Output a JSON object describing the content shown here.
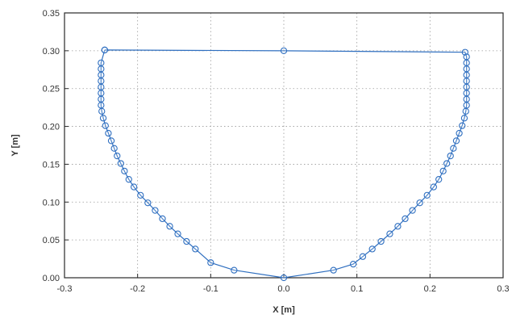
{
  "chart_data": {
    "type": "scatter",
    "title": "",
    "xlabel": "X [m]",
    "ylabel": "Y [m]",
    "xlim": [
      -0.3,
      0.3
    ],
    "ylim": [
      0.0,
      0.35
    ],
    "x_ticks": [
      -0.3,
      -0.2,
      -0.1,
      0.0,
      0.1,
      0.2,
      0.3
    ],
    "y_ticks": [
      0.0,
      0.05,
      0.1,
      0.15,
      0.2,
      0.25,
      0.3,
      0.35
    ],
    "x_tick_labels": [
      "-0.3",
      "-0.2",
      "-0.1",
      "0.0",
      "0.1",
      "0.2",
      "0.3"
    ],
    "y_tick_labels": [
      "0.00",
      "0.05",
      "0.10",
      "0.15",
      "0.20",
      "0.25",
      "0.30",
      "0.35"
    ],
    "grid": true,
    "legend": "none",
    "color": "#2f6fc0",
    "series": [
      {
        "line": true,
        "marker": "open-circle",
        "x": [
          -0.245,
          0.0,
          0.248,
          0.25,
          0.25,
          0.25,
          0.25,
          0.25,
          0.25,
          0.25,
          0.25,
          0.25,
          0.249,
          0.247,
          0.244,
          0.24,
          0.236,
          0.232,
          0.228,
          0.223,
          0.218,
          0.212,
          0.205,
          0.196,
          0.186,
          0.176,
          0.166,
          0.156,
          0.145,
          0.133,
          0.121,
          0.108,
          0.095,
          0.068,
          0.0,
          -0.068,
          -0.1,
          -0.121,
          -0.133,
          -0.145,
          -0.156,
          -0.166,
          -0.176,
          -0.186,
          -0.196,
          -0.205,
          -0.212,
          -0.218,
          -0.223,
          -0.228,
          -0.232,
          -0.236,
          -0.24,
          -0.244,
          -0.247,
          -0.249,
          -0.25,
          -0.25,
          -0.25,
          -0.25,
          -0.25,
          -0.25,
          -0.25,
          -0.25,
          -0.245
        ],
        "y": [
          0.301,
          0.3,
          0.298,
          0.292,
          0.284,
          0.276,
          0.268,
          0.26,
          0.252,
          0.244,
          0.236,
          0.228,
          0.22,
          0.211,
          0.201,
          0.191,
          0.181,
          0.171,
          0.161,
          0.151,
          0.141,
          0.13,
          0.12,
          0.109,
          0.099,
          0.089,
          0.078,
          0.068,
          0.058,
          0.048,
          0.038,
          0.028,
          0.018,
          0.01,
          0.0,
          0.01,
          0.02,
          0.038,
          0.048,
          0.058,
          0.068,
          0.078,
          0.089,
          0.099,
          0.109,
          0.12,
          0.13,
          0.141,
          0.151,
          0.161,
          0.171,
          0.181,
          0.191,
          0.201,
          0.211,
          0.22,
          0.228,
          0.236,
          0.244,
          0.252,
          0.26,
          0.268,
          0.276,
          0.284,
          0.301
        ]
      }
    ]
  }
}
